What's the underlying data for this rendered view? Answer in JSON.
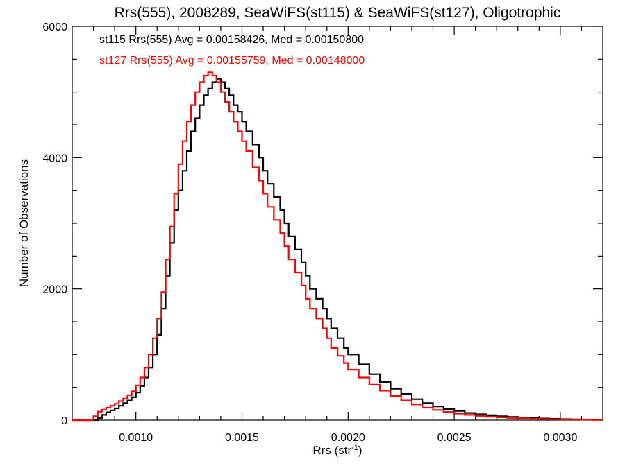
{
  "chart_data": {
    "type": "line",
    "style": "step-histogram",
    "title": "Rrs(555), 2008289, SeaWiFS(st115) & SeaWiFS(st127), Oligotrophic",
    "xlabel": "Rrs (str",
    "xlabel_sup": "-1",
    "xlabel_close": ")",
    "ylabel": "Number of Observations",
    "xlim": [
      0.0007,
      0.0032
    ],
    "ylim": [
      0,
      6000
    ],
    "x_ticks": [
      0.001,
      0.0015,
      0.002,
      0.0025,
      0.003
    ],
    "x_tick_labels": [
      "0.0010",
      "0.0015",
      "0.0020",
      "0.0025",
      "0.0030"
    ],
    "y_ticks": [
      0,
      2000,
      4000,
      6000
    ],
    "y_tick_labels": [
      "0",
      "2000",
      "4000",
      "6000"
    ],
    "grid": false,
    "annotations": [
      {
        "text": "st115 Rrs(555) Avg = 0.00158426, Med = 0.00150800",
        "color": "#000000"
      },
      {
        "text": "st127 Rrs(555) Avg = 0.00155759, Med = 0.00148000",
        "color": "#ff0000"
      }
    ],
    "series": [
      {
        "key": "st115",
        "color": "#000000",
        "x": [
          0.0007,
          0.0008,
          0.00082,
          0.00084,
          0.00086,
          0.00088,
          0.0009,
          0.00092,
          0.00094,
          0.00096,
          0.00098,
          0.001,
          0.00102,
          0.00104,
          0.00106,
          0.00108,
          0.0011,
          0.00112,
          0.00114,
          0.00116,
          0.00118,
          0.0012,
          0.00122,
          0.00124,
          0.00126,
          0.00128,
          0.0013,
          0.00132,
          0.00134,
          0.00136,
          0.00138,
          0.0014,
          0.00142,
          0.00144,
          0.00146,
          0.00148,
          0.0015,
          0.00152,
          0.00155,
          0.00158,
          0.0016,
          0.00162,
          0.00165,
          0.00168,
          0.0017,
          0.00172,
          0.00175,
          0.00178,
          0.0018,
          0.00182,
          0.00185,
          0.00188,
          0.0019,
          0.00192,
          0.00195,
          0.00198,
          0.002,
          0.00205,
          0.0021,
          0.00215,
          0.0022,
          0.00225,
          0.0023,
          0.00235,
          0.0024,
          0.00245,
          0.0025,
          0.00255,
          0.0026,
          0.00265,
          0.0027,
          0.00275,
          0.0028,
          0.00285,
          0.0029,
          0.00295,
          0.003,
          0.00305,
          0.0031,
          0.00315,
          0.0032
        ],
        "y": [
          0,
          0,
          30,
          80,
          120,
          150,
          180,
          220,
          260,
          300,
          350,
          420,
          520,
          650,
          800,
          1000,
          1300,
          1700,
          2200,
          2700,
          3200,
          3500,
          3800,
          4100,
          4400,
          4600,
          4800,
          4950,
          5050,
          5150,
          5200,
          5150,
          5050,
          4950,
          4800,
          4700,
          4550,
          4400,
          4200,
          4000,
          3800,
          3600,
          3400,
          3200,
          3000,
          2800,
          2600,
          2400,
          2200,
          2000,
          1850,
          1700,
          1550,
          1400,
          1250,
          1100,
          1000,
          850,
          700,
          580,
          480,
          400,
          320,
          260,
          210,
          170,
          140,
          110,
          90,
          75,
          60,
          50,
          40,
          32,
          25,
          20,
          15,
          12,
          10,
          8,
          5
        ]
      },
      {
        "key": "st127",
        "color": "#ff0000",
        "x": [
          0.0007,
          0.00078,
          0.0008,
          0.00082,
          0.00084,
          0.00086,
          0.00088,
          0.0009,
          0.00092,
          0.00094,
          0.00096,
          0.00098,
          0.001,
          0.00102,
          0.00104,
          0.00106,
          0.00108,
          0.0011,
          0.00112,
          0.00114,
          0.00116,
          0.00118,
          0.0012,
          0.00122,
          0.00124,
          0.00126,
          0.00128,
          0.0013,
          0.00132,
          0.00134,
          0.00136,
          0.00138,
          0.0014,
          0.00142,
          0.00144,
          0.00146,
          0.00148,
          0.0015,
          0.00152,
          0.00155,
          0.00158,
          0.0016,
          0.00162,
          0.00165,
          0.00168,
          0.0017,
          0.00172,
          0.00175,
          0.00178,
          0.0018,
          0.00182,
          0.00185,
          0.00188,
          0.0019,
          0.00192,
          0.00195,
          0.00198,
          0.002,
          0.00205,
          0.0021,
          0.00215,
          0.0022,
          0.00225,
          0.0023,
          0.00235,
          0.0024,
          0.00245,
          0.0025,
          0.00255,
          0.0026,
          0.00265,
          0.0027,
          0.00275,
          0.0028,
          0.00285,
          0.0029,
          0.00295,
          0.003,
          0.00305,
          0.0031,
          0.00315,
          0.0032
        ],
        "y": [
          0,
          0,
          60,
          130,
          160,
          190,
          220,
          250,
          290,
          330,
          380,
          440,
          530,
          650,
          800,
          1000,
          1250,
          1550,
          1950,
          2450,
          2950,
          3450,
          3900,
          4250,
          4550,
          4800,
          5000,
          5150,
          5250,
          5300,
          5250,
          5150,
          5000,
          4850,
          4700,
          4550,
          4400,
          4250,
          4100,
          3850,
          3650,
          3450,
          3250,
          3050,
          2850,
          2650,
          2450,
          2250,
          2050,
          1850,
          1700,
          1550,
          1400,
          1250,
          1100,
          980,
          870,
          770,
          650,
          540,
          450,
          370,
          300,
          240,
          190,
          155,
          125,
          100,
          80,
          65,
          52,
          42,
          34,
          27,
          21,
          16,
          13,
          10,
          8,
          6,
          4,
          3
        ]
      }
    ]
  }
}
